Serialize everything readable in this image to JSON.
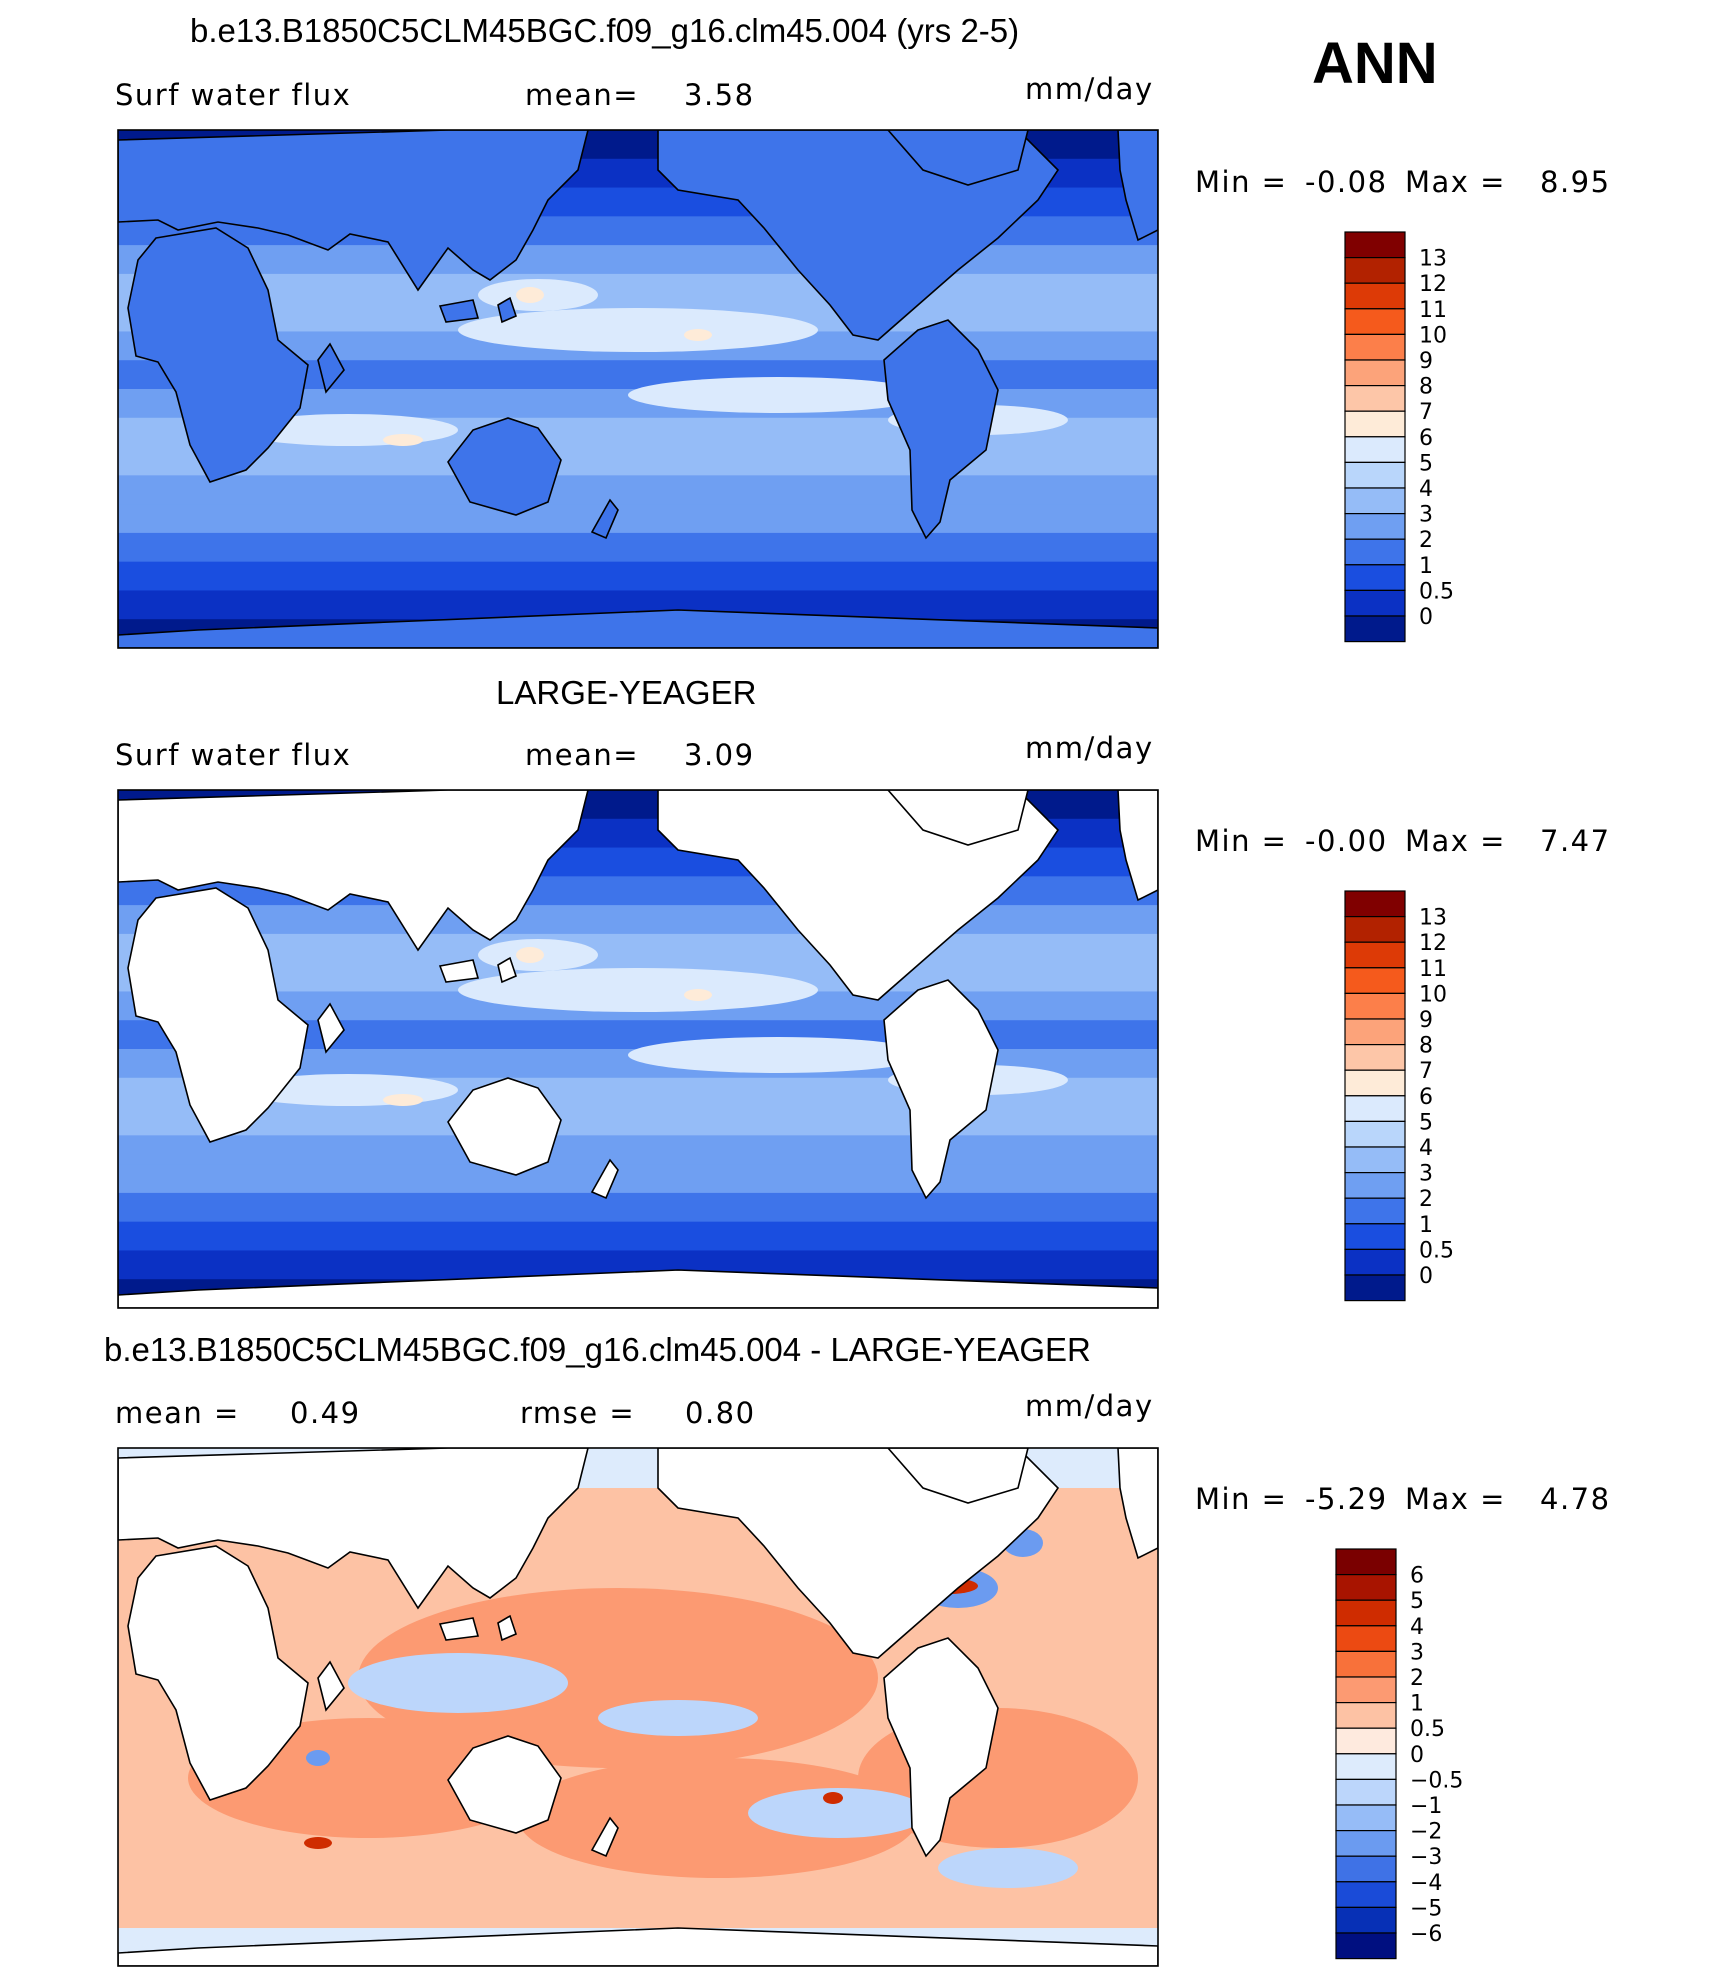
{
  "season": "ANN",
  "chart_data": [
    {
      "type": "heatmap",
      "title": "b.e13.B1850C5CLM45BGC.f09_g16.clm45.004 (yrs 2-5)",
      "left_label": "Surf water flux",
      "center_label": "mean=",
      "center_value": "3.58",
      "units": "mm/day",
      "min_label": "Min =",
      "min_value": "-0.08",
      "max_label": "Max =",
      "max_value": "8.95",
      "colorbar": {
        "levels": [
          "13",
          "12",
          "11",
          "10",
          "9",
          "8",
          "7",
          "6",
          "5",
          "4",
          "3",
          "2",
          "1",
          "0.5",
          "0"
        ],
        "colors": [
          "#800000",
          "#b22200",
          "#dd3a06",
          "#f55a1c",
          "#fc7f4a",
          "#fca37a",
          "#fdc6a8",
          "#feebd8",
          "#dbeafd",
          "#b9d6fb",
          "#95bcf7",
          "#6f9ff2",
          "#3e74ea",
          "#1a4ee0",
          "#0b31c4",
          "#001a8c"
        ]
      }
    },
    {
      "type": "heatmap",
      "title": "LARGE-YEAGER",
      "left_label": "Surf water flux",
      "center_label": "mean=",
      "center_value": "3.09",
      "units": "mm/day",
      "min_label": "Min =",
      "min_value": "-0.00",
      "max_label": "Max =",
      "max_value": "7.47",
      "colorbar": {
        "levels": [
          "13",
          "12",
          "11",
          "10",
          "9",
          "8",
          "7",
          "6",
          "5",
          "4",
          "3",
          "2",
          "1",
          "0.5",
          "0"
        ],
        "colors": [
          "#800000",
          "#b22200",
          "#dd3a06",
          "#f55a1c",
          "#fc7f4a",
          "#fca37a",
          "#fdc6a8",
          "#feebd8",
          "#dbeafd",
          "#b9d6fb",
          "#95bcf7",
          "#6f9ff2",
          "#3e74ea",
          "#1a4ee0",
          "#0b31c4",
          "#001a8c"
        ]
      }
    },
    {
      "type": "heatmap",
      "title": "b.e13.B1850C5CLM45BGC.f09_g16.clm45.004 - LARGE-YEAGER",
      "left_label": "mean =",
      "left_value": "0.49",
      "center_label": "rmse =",
      "center_value": "0.80",
      "units": "mm/day",
      "min_label": "Min =",
      "min_value": "-5.29",
      "max_label": "Max =",
      "max_value": "4.78",
      "colorbar": {
        "levels": [
          "6",
          "5",
          "4",
          "3",
          "2",
          "1",
          "0.5",
          "0",
          "−0.5",
          "−1",
          "−2",
          "−3",
          "−4",
          "−5",
          "−6"
        ],
        "colors": [
          "#7a0000",
          "#a81400",
          "#cf2c00",
          "#ec4a12",
          "#f8713a",
          "#fc9a72",
          "#fdc2a4",
          "#feeade",
          "#ddebfc",
          "#bcd6fb",
          "#96bcf7",
          "#6b9bf0",
          "#3f72e6",
          "#1a4bd8",
          "#0730b6",
          "#000f80"
        ]
      }
    }
  ]
}
